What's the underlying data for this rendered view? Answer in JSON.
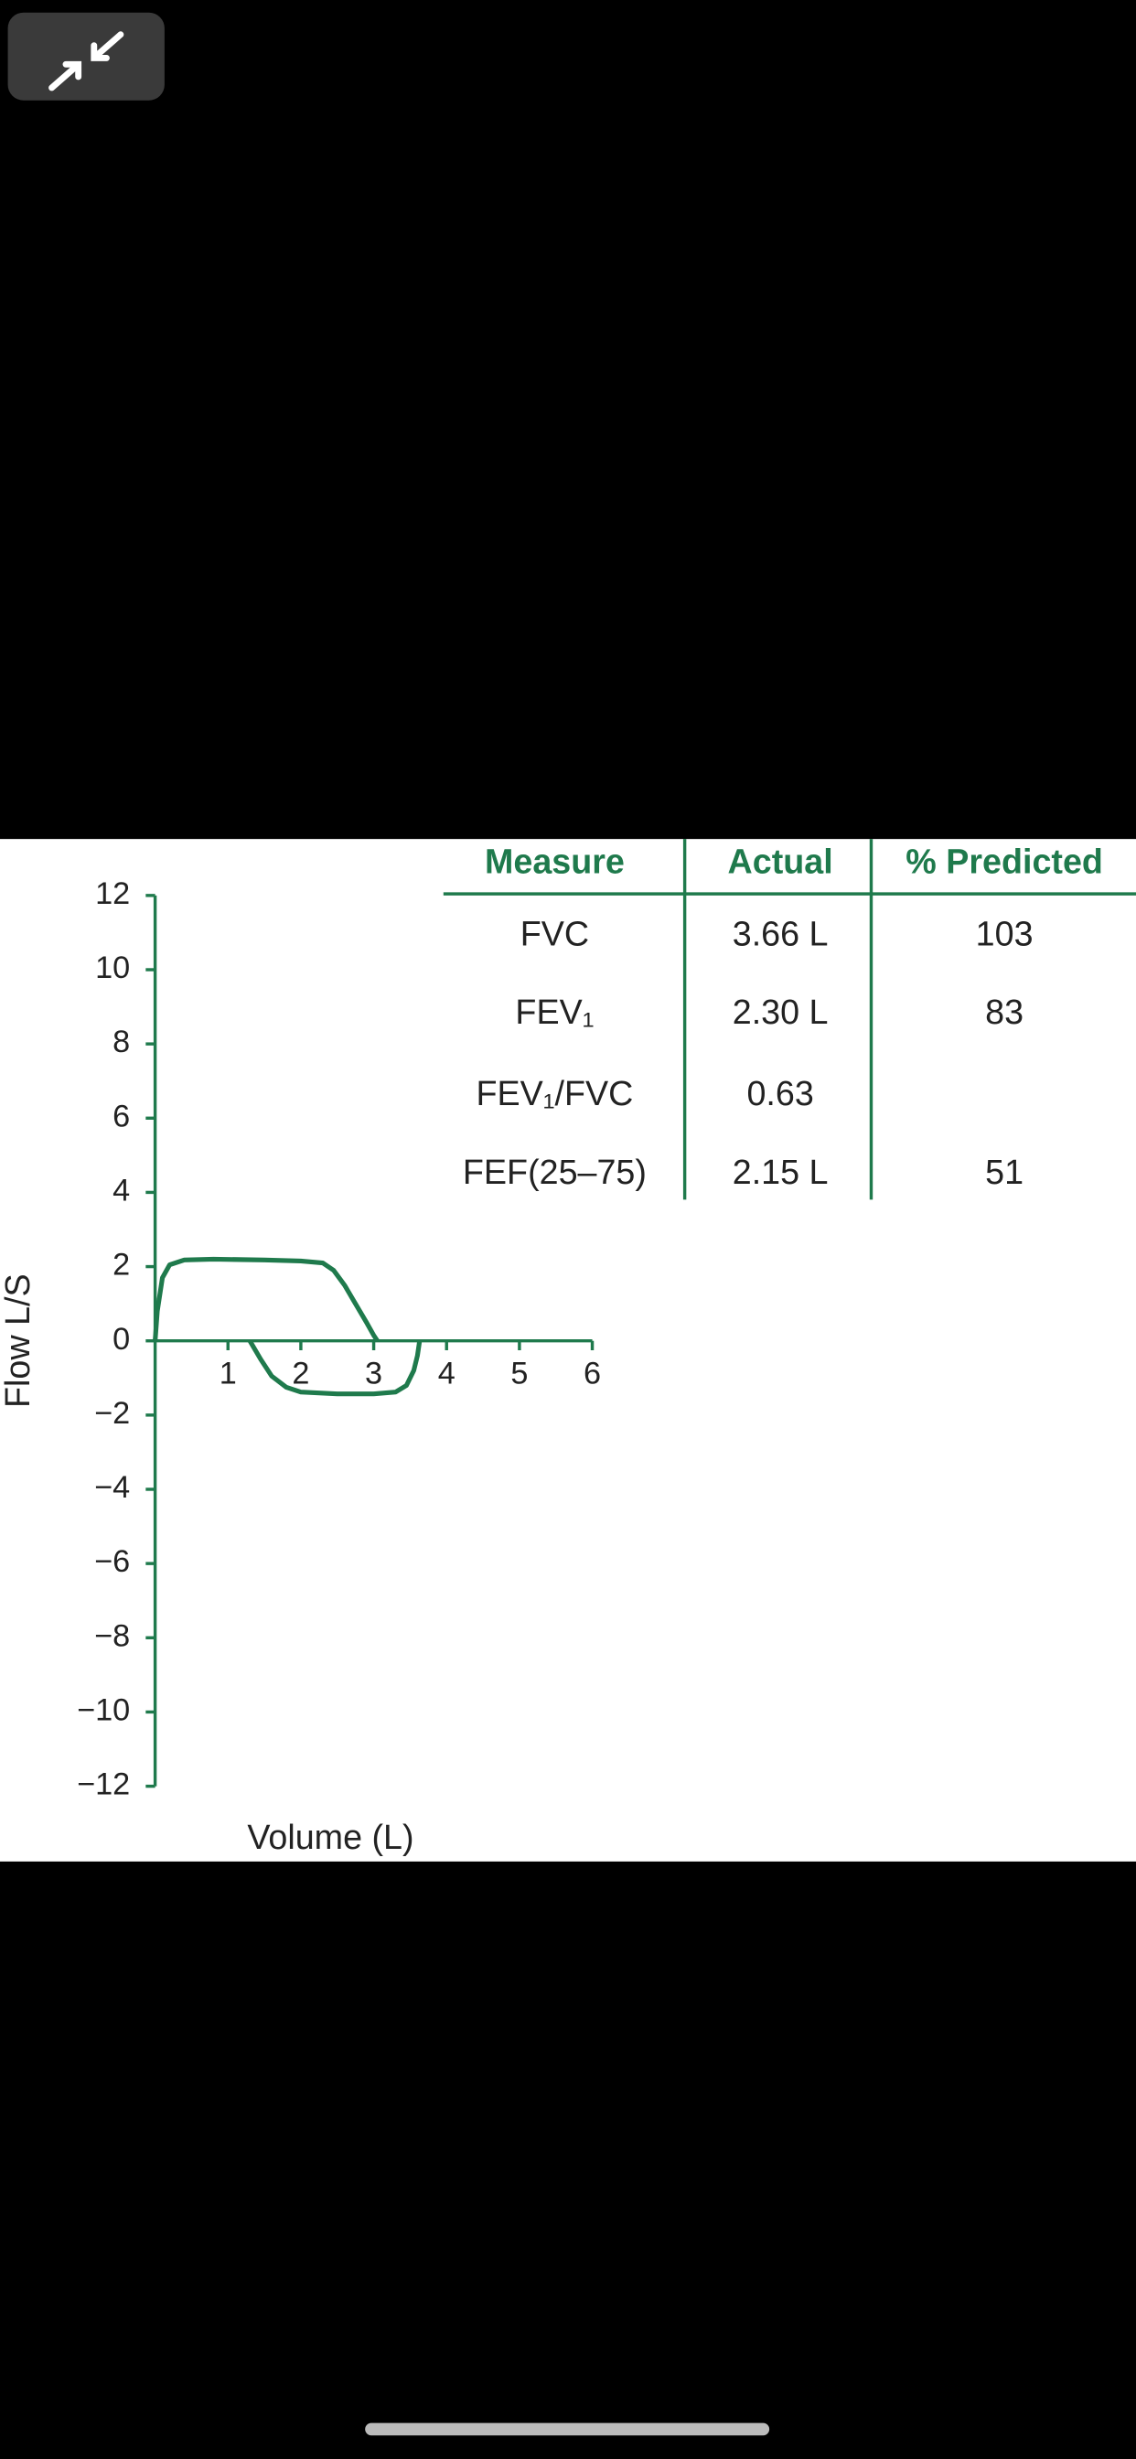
{
  "chart_data": {
    "type": "line",
    "x_label": "Volume (L)",
    "y_label": "Flow L/S",
    "xlim": [
      0,
      6
    ],
    "ylim": [
      -12,
      12
    ],
    "xticks": [
      1,
      2,
      3,
      4,
      5,
      6
    ],
    "yticks": [
      {
        "value": -12,
        "label": "−12"
      },
      {
        "value": -10,
        "label": "−10"
      },
      {
        "value": -8,
        "label": "−8"
      },
      {
        "value": -6,
        "label": "−6"
      },
      {
        "value": -4,
        "label": "−4"
      },
      {
        "value": -2,
        "label": "−2"
      },
      0,
      2,
      4,
      6,
      8,
      10,
      12
    ],
    "color": "#1f7a4c",
    "series": [
      {
        "x": [
          0,
          0.03,
          0.1,
          0.2,
          0.4,
          0.8,
          1.5,
          2.0,
          2.3,
          2.45,
          2.6,
          2.75,
          2.9,
          3.0,
          3.05
        ],
        "values": [
          0,
          0.8,
          1.7,
          2.05,
          2.18,
          2.2,
          2.18,
          2.15,
          2.1,
          1.9,
          1.5,
          1.0,
          0.5,
          0.15,
          0
        ]
      },
      {
        "x": [
          1.3,
          1.45,
          1.6,
          1.8,
          2.0,
          2.5,
          3.0,
          3.3,
          3.45,
          3.55,
          3.6,
          3.63
        ],
        "values": [
          0,
          -0.5,
          -0.95,
          -1.25,
          -1.38,
          -1.43,
          -1.43,
          -1.38,
          -1.2,
          -0.8,
          -0.4,
          0
        ]
      }
    ]
  },
  "table": {
    "header": [
      "Measure",
      "Actual",
      "% Predicted"
    ],
    "rows": [
      {
        "measure": "FVC",
        "actual": "3.66 L",
        "predicted": "103"
      },
      {
        "measure": "FEV₁",
        "actual": "2.30 L",
        "predicted": "83"
      },
      {
        "measure": "FEV₁/FVC",
        "actual": "0.63"
      },
      {
        "measure": "FEF(25–75)",
        "actual": "2.15 L",
        "predicted": "51"
      }
    ]
  }
}
